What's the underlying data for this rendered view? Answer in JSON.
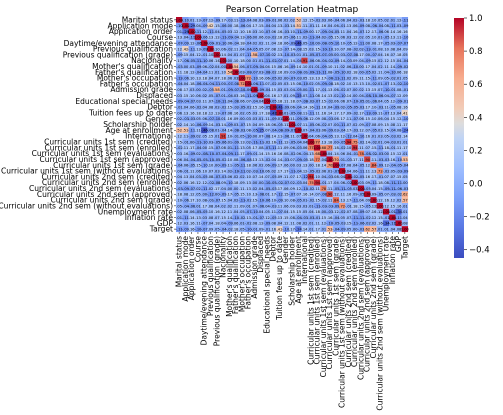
{
  "chart_data": {
    "type": "heatmap",
    "title": "Pearson Correlation Heatmap",
    "variables": [
      "Marital status",
      "Application mode",
      "Application order",
      "Course",
      "Daytime/evening attendance\t",
      "Previous qualification",
      "Previous qualification (grade)",
      "Nacionality",
      "Mother's qualification",
      "Father's qualification",
      "Mother's occupation",
      "Father's occupation",
      "Admission grade",
      "Displaced",
      "Educational special needs",
      "Debtor",
      "Tuition fees up to date",
      "Gender",
      "Scholarship holder",
      "Age at enrollment",
      "International",
      "Curricular units 1st sem (credited)",
      "Curricular units 1st sem (enrolled)",
      "Curricular units 1st sem (evaluations)",
      "Curricular units 1st sem (approved)",
      "Curricular units 1st sem (grade)",
      "Curricular units 1st sem (without evaluations)",
      "Curricular units 2nd sem (credited)",
      "Curricular units 2nd sem (enrolled)",
      "Curricular units 2nd sem (evaluations)",
      "Curricular units 2nd sem (approved)",
      "Curricular units 2nd sem (grade)",
      "Curricular units 2nd sem (without evaluations)",
      "Unemployment rate",
      "Inflation rate",
      "GDP",
      "Target"
    ],
    "strong_pairs": [
      {
        "a": "Marital status",
        "b": "Age at enrollment",
        "r": 0.52
      },
      {
        "a": "Application mode",
        "b": "Age at enrollment",
        "r": 0.51
      },
      {
        "a": "Application mode",
        "b": "Previous qualification",
        "r": 0.42
      },
      {
        "a": "Application order",
        "b": "Application mode",
        "r": -0.29
      },
      {
        "a": "Daytime/evening attendance\t",
        "b": "Age at enrollment",
        "r": -0.46
      },
      {
        "a": "Previous qualification (grade)",
        "b": "Admission grade",
        "r": 0.58
      },
      {
        "a": "Nacionality",
        "b": "International",
        "r": 0.91
      },
      {
        "a": "Mother's qualification",
        "b": "Father's qualification",
        "r": 0.54
      },
      {
        "a": "Mother's occupation",
        "b": "Father's occupation",
        "r": 0.72
      },
      {
        "a": "Displaced",
        "b": "Age at enrollment",
        "r": -0.25
      },
      {
        "a": "Debtor",
        "b": "Tuition fees up to date",
        "r": -0.41
      },
      {
        "a": "Tuition fees up to date",
        "b": "Target",
        "r": 0.41
      },
      {
        "a": "Curricular units 1st sem (credited)",
        "b": "Curricular units 1st sem (enrolled)",
        "r": 0.77
      },
      {
        "a": "Curricular units 1st sem (credited)",
        "b": "Curricular units 2nd sem (credited)",
        "r": 0.94
      },
      {
        "a": "Curricular units 1st sem (credited)",
        "b": "Curricular units 2nd sem (enrolled)",
        "r": 0.75
      },
      {
        "a": "Curricular units 1st sem (enrolled)",
        "b": "Curricular units 1st sem (evaluations)",
        "r": 0.68
      },
      {
        "a": "Curricular units 1st sem (enrolled)",
        "b": "Curricular units 1st sem (approved)",
        "r": 0.77
      },
      {
        "a": "Curricular units 1st sem (enrolled)",
        "b": "Curricular units 2nd sem (enrolled)",
        "r": 0.94
      },
      {
        "a": "Curricular units 1st sem (evaluations)",
        "b": "Curricular units 2nd sem (evaluations)",
        "r": 0.78
      },
      {
        "a": "Curricular units 1st sem (approved)",
        "b": "Curricular units 1st sem (grade)",
        "r": 0.7
      },
      {
        "a": "Curricular units 1st sem (approved)",
        "b": "Curricular units 2nd sem (approved)",
        "r": 0.9
      },
      {
        "a": "Curricular units 1st sem (grade)",
        "b": "Curricular units 2nd sem (grade)",
        "r": 0.84
      },
      {
        "a": "Curricular units 1st sem (without evaluations)",
        "b": "Curricular units 2nd sem (without evaluations)",
        "r": 0.72
      },
      {
        "a": "Curricular units 2nd sem (approved)",
        "b": "Target",
        "r": 0.62
      },
      {
        "a": "Curricular units 2nd sem (grade)",
        "b": "Target",
        "r": 0.57
      },
      {
        "a": "Curricular units 1st sem (approved)",
        "b": "Target",
        "r": 0.53
      },
      {
        "a": "Age at enrollment",
        "b": "Target",
        "r": -0.24
      },
      {
        "a": "Unemployment rate",
        "b": "Inflation rate",
        "r": -0.01
      },
      {
        "a": "Inflation rate",
        "b": "GDP",
        "r": -0.11
      },
      {
        "a": "Unemployment rate",
        "b": "GDP",
        "r": -0.34
      }
    ],
    "colorbar": {
      "min": -0.45,
      "max": 1.0,
      "ticks": [
        "1.0",
        "0.8",
        "0.6",
        "0.4",
        "0.2",
        "0.0",
        "−0.2",
        "−0.4"
      ],
      "colormap": "coolwarm"
    },
    "annotations": "correlation coefficients shown in each cell (2 decimals)",
    "legend": "colorbar right"
  }
}
